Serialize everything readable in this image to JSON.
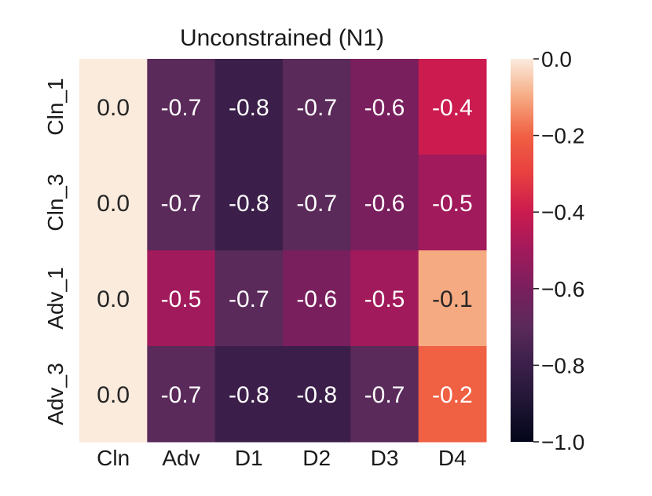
{
  "chart_data": {
    "type": "heatmap",
    "title": "Unconstrained (N1)",
    "xlabel": "",
    "ylabel": "",
    "x_categories": [
      "Cln",
      "Adv",
      "D1",
      "D2",
      "D3",
      "D4"
    ],
    "y_categories": [
      "Cln_1",
      "Cln_3",
      "Adv_1",
      "Adv_3"
    ],
    "values": [
      [
        0.0,
        -0.7,
        -0.8,
        -0.7,
        -0.6,
        -0.4
      ],
      [
        0.0,
        -0.7,
        -0.8,
        -0.7,
        -0.6,
        -0.5
      ],
      [
        0.0,
        -0.5,
        -0.7,
        -0.6,
        -0.5,
        -0.1
      ],
      [
        0.0,
        -0.7,
        -0.8,
        -0.8,
        -0.7,
        -0.2
      ]
    ],
    "cell_labels": [
      [
        "0.0",
        "-0.7",
        "-0.8",
        "-0.7",
        "-0.6",
        "-0.4"
      ],
      [
        "0.0",
        "-0.7",
        "-0.8",
        "-0.7",
        "-0.6",
        "-0.5"
      ],
      [
        "0.0",
        "-0.5",
        "-0.7",
        "-0.6",
        "-0.5",
        "-0.1"
      ],
      [
        "0.0",
        "-0.7",
        "-0.8",
        "-0.8",
        "-0.7",
        "-0.2"
      ]
    ],
    "colorbar": {
      "range": [
        -1.0,
        0.0
      ],
      "ticks": [
        0.0,
        -0.2,
        -0.4,
        -0.6,
        -0.8,
        -1.0
      ],
      "tick_labels": [
        "0.0",
        "−0.2",
        "−0.4",
        "−0.6",
        "−0.8",
        "−1.0"
      ]
    },
    "colormap": "rocket",
    "grid": false
  }
}
